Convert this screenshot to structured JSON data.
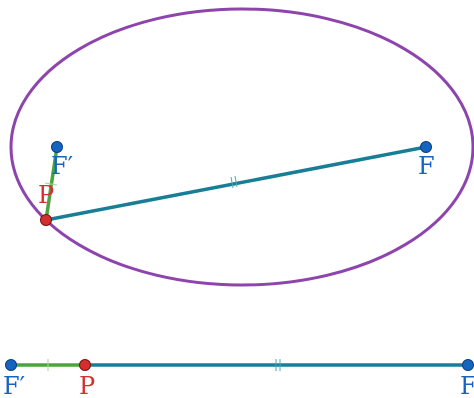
{
  "diagram": {
    "labels": {
      "focus_right": "F",
      "focus_left": "F′",
      "point": "P",
      "segment_left": "F′",
      "segment_point": "P",
      "segment_right": "F"
    },
    "colors": {
      "ellipse": "#8e44ad",
      "distance_to_far_focus": "#187e96",
      "distance_to_near_focus": "#4da33f",
      "focus_points": "#1565c0",
      "point_p": "#d32f2f",
      "focus_label": "#1565c0",
      "point_label": "#d32f2f"
    }
  }
}
